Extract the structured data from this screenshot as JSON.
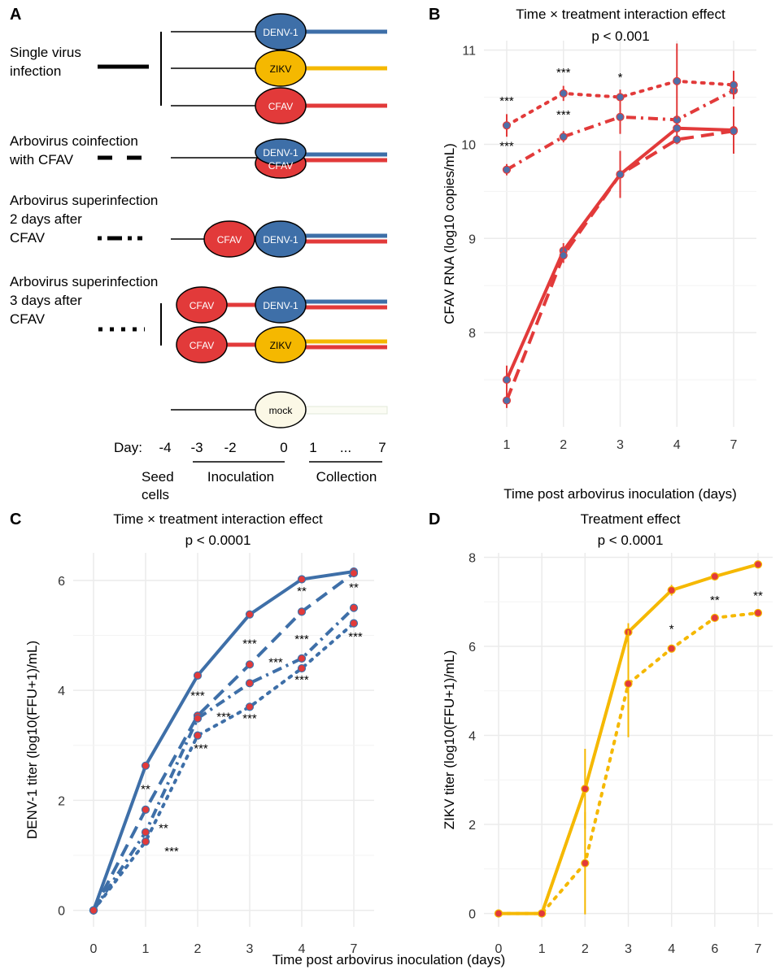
{
  "panel_a": {
    "letter": "A",
    "colors": {
      "denv": "#3e6fa8",
      "zikv": "#f5b800",
      "cfav": "#e23a3a",
      "mock_fill": "#fbf8e6",
      "mock_line": "#e8eedc"
    },
    "groups": [
      {
        "label_lines": [
          "Single virus",
          "infection"
        ],
        "style": "solid"
      },
      {
        "label_lines": [
          "Arbovirus coinfection",
          "with CFAV"
        ],
        "style": "dash"
      },
      {
        "label_lines": [
          "Arbovirus superinfection",
          "2 days after",
          "CFAV"
        ],
        "style": "dotdash"
      },
      {
        "label_lines": [
          "Arbovirus superinfection",
          "3 days after",
          "CFAV"
        ],
        "style": "dot"
      }
    ],
    "virus_labels": {
      "denv": "DENV-1",
      "zikv": "ZIKV",
      "cfav": "CFAV",
      "mock": "mock"
    },
    "day_label": "Day:",
    "day_ticks": [
      "-4",
      "-3",
      "-2",
      "0",
      "1",
      "...",
      "7"
    ],
    "phase_labels": {
      "seed_lines": [
        "Seed",
        "cells"
      ],
      "inoculation": "Inoculation",
      "collection": "Collection"
    }
  },
  "chart_data": [
    {
      "panel": "B",
      "type": "line",
      "title": "Time × treatment interaction effect",
      "subtitle": "p < 0.001",
      "xlabel": "Time post arbovirus inoculation (days)",
      "ylabel": "CFAV RNA (log10 copies/mL)",
      "categories": [
        "1",
        "2",
        "3",
        "4",
        "7"
      ],
      "ylim": [
        7.0,
        11.1
      ],
      "yticks": [
        8,
        9,
        10,
        11
      ],
      "line_color": "#e23a3a",
      "point_color": "#4f6fa8",
      "series": [
        {
          "style": "solid",
          "values": [
            7.5,
            8.87,
            9.68,
            10.17,
            10.15
          ],
          "err": [
            0.15,
            0.08,
            0.15,
            0.1,
            0.25
          ]
        },
        {
          "style": "dash",
          "values": [
            7.28,
            8.82,
            9.68,
            10.05,
            10.14
          ],
          "err": [
            0.08,
            0.08,
            0.25,
            0.05,
            0.05
          ]
        },
        {
          "style": "dotdash",
          "values": [
            9.73,
            10.08,
            10.29,
            10.26,
            10.57
          ],
          "err": [
            0.06,
            0.06,
            0.18,
            0.05,
            0.05
          ]
        },
        {
          "style": "dot",
          "values": [
            10.2,
            10.54,
            10.5,
            10.67,
            10.63
          ],
          "err": [
            0.12,
            0.08,
            0.08,
            0.4,
            0.15
          ]
        }
      ],
      "annotations": [
        {
          "x": "1",
          "y": 10.42,
          "text": "***"
        },
        {
          "x": "1",
          "y": 9.94,
          "text": "***"
        },
        {
          "x": "2",
          "y": 10.72,
          "text": "***"
        },
        {
          "x": "2",
          "y": 10.27,
          "text": "***"
        },
        {
          "x": "3",
          "y": 10.67,
          "text": "*"
        }
      ]
    },
    {
      "panel": "C",
      "type": "line",
      "title": "Time × treatment interaction effect",
      "subtitle": "p < 0.0001",
      "xlabel": "Time post arbovirus inoculation (days)",
      "ylabel": "DENV-1 titer (log10(FFU+1)/mL)",
      "categories": [
        "0",
        "1",
        "2",
        "3",
        "4",
        "7"
      ],
      "ylim": [
        -0.3,
        6.5
      ],
      "yticks": [
        0,
        2,
        4,
        6
      ],
      "line_color": "#3e6fa8",
      "point_color": "#e23a3a",
      "series": [
        {
          "style": "solid",
          "values": [
            0,
            2.63,
            4.27,
            5.38,
            6.02,
            6.16
          ]
        },
        {
          "style": "dash",
          "values": [
            0,
            1.83,
            3.54,
            4.47,
            5.43,
            6.13
          ]
        },
        {
          "style": "dotdash",
          "values": [
            0,
            1.42,
            3.49,
            4.13,
            4.58,
            5.5
          ]
        },
        {
          "style": "dot",
          "values": [
            0,
            1.25,
            3.18,
            3.7,
            4.4,
            5.22
          ]
        }
      ],
      "annotations": [
        {
          "x": "1",
          "y": 2.13,
          "text": "**"
        },
        {
          "x": "1",
          "y": 1.42,
          "text": "**",
          "dx": 22
        },
        {
          "x": "1",
          "y": 1.0,
          "text": "***",
          "dx": 32
        },
        {
          "x": "2",
          "y": 3.83,
          "text": "***"
        },
        {
          "x": "2",
          "y": 3.45,
          "text": "***",
          "dx": 32
        },
        {
          "x": "2",
          "y": 2.87,
          "text": "***",
          "dx": 4
        },
        {
          "x": "3",
          "y": 4.78,
          "text": "***"
        },
        {
          "x": "3",
          "y": 4.44,
          "text": "***",
          "dx": 32
        },
        {
          "x": "3",
          "y": 3.42,
          "text": "***"
        },
        {
          "x": "4",
          "y": 5.73,
          "text": "**"
        },
        {
          "x": "4",
          "y": 4.86,
          "text": "***"
        },
        {
          "x": "4",
          "y": 4.12,
          "text": "***"
        },
        {
          "x": "7",
          "y": 5.8,
          "text": "**"
        },
        {
          "x": "7",
          "y": 4.9,
          "text": "***",
          "dx": 2
        }
      ]
    },
    {
      "panel": "D",
      "type": "line",
      "title": "Treatment effect",
      "subtitle": "p < 0.0001",
      "xlabel": "",
      "ylabel": "ZIKV titer (log10(FFU+1)/mL)",
      "categories": [
        "0",
        "1",
        "2",
        "3",
        "4",
        "6",
        "7"
      ],
      "ylim": [
        -0.3,
        8.1
      ],
      "yticks": [
        0,
        2,
        4,
        6,
        8
      ],
      "line_color": "#f5b800",
      "point_color": "#e23a3a",
      "series": [
        {
          "style": "solid",
          "values": [
            0,
            0,
            2.8,
            6.32,
            7.26,
            7.57,
            7.84
          ],
          "err": [
            0,
            0,
            0.9,
            0.2,
            0.12,
            0.05,
            0.05
          ]
        },
        {
          "style": "dot",
          "values": [
            0,
            0,
            1.13,
            5.16,
            5.95,
            6.64,
            6.75
          ],
          "err": [
            0,
            0,
            1.15,
            1.2,
            0.05,
            0.05,
            0.05
          ]
        }
      ],
      "annotations": [
        {
          "x": "4",
          "y": 6.3,
          "text": "*"
        },
        {
          "x": "6",
          "y": 6.95,
          "text": "**"
        },
        {
          "x": "7",
          "y": 7.05,
          "text": "**"
        }
      ]
    }
  ],
  "bottom_xlabel": "Time post arbovirus inoculation (days)"
}
